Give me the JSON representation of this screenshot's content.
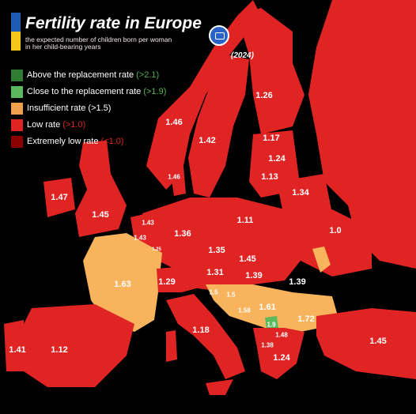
{
  "title": "Fertility rate in Europe",
  "subtitle": "the expected number of children born per woman in her child-bearing years",
  "year": "(2024)",
  "legend": [
    {
      "label": "Above the replacement rate",
      "threshold": "(>2.1)",
      "color": "#2e7d32",
      "threshold_color": "#4caf50"
    },
    {
      "label": "Close to the replacement rate",
      "threshold": "(>1.9)",
      "color": "#5cb85c",
      "threshold_color": "#5cb85c"
    },
    {
      "label": "Insufficient rate",
      "threshold": "(>1.5)",
      "color": "#f0a04b",
      "threshold_color": "#ffffff"
    },
    {
      "label": "Low rate",
      "threshold": "(>1.0)",
      "color": "#e02424",
      "threshold_color": "#e02424"
    },
    {
      "label": "Extremely low rate",
      "threshold": "(<1.0)",
      "color": "#8b0000",
      "threshold_color": "#e02424"
    }
  ],
  "colors": {
    "background": "#000000",
    "low": "#e02424",
    "insufficient": "#f8b45c",
    "close": "#5cb85c",
    "extremely_low": "#8b0000"
  },
  "values": [
    {
      "country": "Norway",
      "value": "1.46",
      "category": "low"
    },
    {
      "country": "Sweden",
      "value": "1.42",
      "category": "low"
    },
    {
      "country": "Finland",
      "value": "1.26",
      "category": "low"
    },
    {
      "country": "Estonia",
      "value": "1.17",
      "category": "low"
    },
    {
      "country": "Latvia",
      "value": "1.24",
      "category": "low"
    },
    {
      "country": "Lithuania",
      "value": "1.13",
      "category": "low"
    },
    {
      "country": "Belarus",
      "value": "1.34",
      "category": "low"
    },
    {
      "country": "Denmark",
      "value": "1.46",
      "category": "low"
    },
    {
      "country": "Ireland",
      "value": "1.47",
      "category": "low"
    },
    {
      "country": "United Kingdom",
      "value": "1.45",
      "category": "low"
    },
    {
      "country": "Netherlands",
      "value": "1.43",
      "category": "low"
    },
    {
      "country": "Belgium",
      "value": "1.43",
      "category": "low"
    },
    {
      "country": "Luxembourg",
      "value": "1.25",
      "category": "low"
    },
    {
      "country": "Germany",
      "value": "1.36",
      "category": "low"
    },
    {
      "country": "Poland",
      "value": "1.11",
      "category": "low"
    },
    {
      "country": "Ukraine",
      "value": "1.0",
      "category": "low"
    },
    {
      "country": "France",
      "value": "1.63",
      "category": "insufficient"
    },
    {
      "country": "Czechia",
      "value": "1.35",
      "category": "low"
    },
    {
      "country": "Slovakia",
      "value": "1.45",
      "category": "low"
    },
    {
      "country": "Switzerland",
      "value": "1.29",
      "category": "low"
    },
    {
      "country": "Austria",
      "value": "1.31",
      "category": "low"
    },
    {
      "country": "Hungary",
      "value": "1.39",
      "category": "low"
    },
    {
      "country": "Romania",
      "value": "1.39",
      "category": "low"
    },
    {
      "country": "Slovenia",
      "value": "1.5",
      "category": "insufficient"
    },
    {
      "country": "Croatia",
      "value": "1.5",
      "category": "insufficient"
    },
    {
      "country": "Bosnia",
      "value": "1.58",
      "category": "insufficient"
    },
    {
      "country": "Serbia",
      "value": "1.61",
      "category": "insufficient"
    },
    {
      "country": "Bulgaria",
      "value": "1.72",
      "category": "insufficient"
    },
    {
      "country": "Kosovo",
      "value": "1.9",
      "category": "close"
    },
    {
      "country": "North Macedonia",
      "value": "1.48",
      "category": "low"
    },
    {
      "country": "Albania",
      "value": "1.38",
      "category": "low"
    },
    {
      "country": "Greece",
      "value": "1.24",
      "category": "low"
    },
    {
      "country": "Turkey",
      "value": "1.45",
      "category": "low"
    },
    {
      "country": "Italy",
      "value": "1.18",
      "category": "low"
    },
    {
      "country": "Spain",
      "value": "1.12",
      "category": "low"
    },
    {
      "country": "Portugal",
      "value": "1.41",
      "category": "low"
    }
  ]
}
